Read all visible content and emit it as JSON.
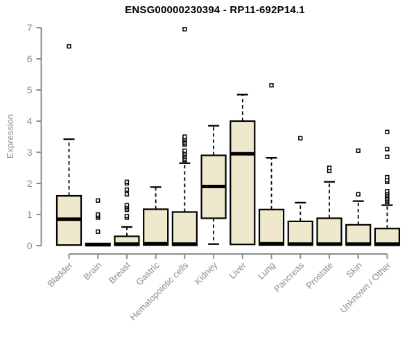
{
  "figure": {
    "title": "ENSG00000230394 - RP11-692P14.1"
  },
  "chart_data": {
    "type": "boxplot",
    "title": "ENSG00000230394 - RP11-692P14.1",
    "xlabel": "",
    "ylabel": "Expression",
    "ylim": [
      0,
      7
    ],
    "yticks": [
      0,
      1,
      2,
      3,
      4,
      5,
      6,
      7
    ],
    "grid": false,
    "legend": false,
    "categories": [
      "Bladder",
      "Brain",
      "Breast",
      "Gastric",
      "Hematopoietic cells",
      "Kidney",
      "Liver",
      "Lung",
      "Pancreas",
      "Prostate",
      "Skin",
      "Unknown / Other"
    ],
    "series": [
      {
        "name": "Bladder",
        "low": 0.02,
        "q1": 0.02,
        "median": 0.85,
        "q3": 1.6,
        "high": 3.42,
        "outliers": [
          6.4
        ]
      },
      {
        "name": "Brain",
        "low": 0.0,
        "q1": 0.0,
        "median": 0.03,
        "q3": 0.07,
        "high": 0.07,
        "outliers": [
          0.45,
          0.9,
          0.95,
          1.0,
          1.45
        ]
      },
      {
        "name": "Breast",
        "low": 0.01,
        "q1": 0.01,
        "median": 0.05,
        "q3": 0.3,
        "high": 0.6,
        "outliers": [
          0.9,
          0.95,
          1.15,
          1.2,
          1.25,
          1.3,
          1.65,
          1.8,
          2.0,
          2.05
        ]
      },
      {
        "name": "Gastric",
        "low": 0.02,
        "q1": 0.02,
        "median": 0.06,
        "q3": 1.17,
        "high": 1.88,
        "outliers": []
      },
      {
        "name": "Hematopoietic cells",
        "low": 0.01,
        "q1": 0.01,
        "median": 0.05,
        "q3": 1.08,
        "high": 2.65,
        "outliers": [
          2.75,
          2.8,
          2.85,
          2.9,
          2.95,
          3.0,
          3.05,
          3.25,
          3.3,
          3.35,
          3.4,
          3.45,
          3.5,
          6.95
        ]
      },
      {
        "name": "Kidney",
        "low": 0.05,
        "q1": 0.88,
        "median": 1.9,
        "q3": 2.9,
        "high": 3.85,
        "outliers": []
      },
      {
        "name": "Liver",
        "low": 0.04,
        "q1": 0.04,
        "median": 2.95,
        "q3": 4.0,
        "high": 4.85,
        "outliers": []
      },
      {
        "name": "Lung",
        "low": 0.02,
        "q1": 0.02,
        "median": 0.06,
        "q3": 1.16,
        "high": 2.82,
        "outliers": [
          5.15
        ]
      },
      {
        "name": "Pancreas",
        "low": 0.02,
        "q1": 0.02,
        "median": 0.05,
        "q3": 0.78,
        "high": 1.38,
        "outliers": [
          3.45
        ]
      },
      {
        "name": "Prostate",
        "low": 0.02,
        "q1": 0.02,
        "median": 0.05,
        "q3": 0.88,
        "high": 2.05,
        "outliers": [
          2.4,
          2.5
        ]
      },
      {
        "name": "Skin",
        "low": 0.02,
        "q1": 0.02,
        "median": 0.05,
        "q3": 0.67,
        "high": 1.43,
        "outliers": [
          1.65,
          3.05
        ]
      },
      {
        "name": "Unknown / Other",
        "low": 0.01,
        "q1": 0.01,
        "median": 0.05,
        "q3": 0.55,
        "high": 1.3,
        "outliers": [
          1.4,
          1.45,
          1.5,
          1.55,
          1.6,
          1.65,
          1.7,
          1.75,
          2.05,
          2.1,
          2.2,
          2.85,
          3.1,
          3.65
        ]
      }
    ],
    "style": {
      "box_fill": "#EEE8CC",
      "box_stroke": "#000000",
      "whisker_color": "#000000",
      "outlier_color": "#000000",
      "axis_color": "#8C8C8C",
      "title_color": "#000000",
      "background": "#FFFFFF"
    }
  }
}
